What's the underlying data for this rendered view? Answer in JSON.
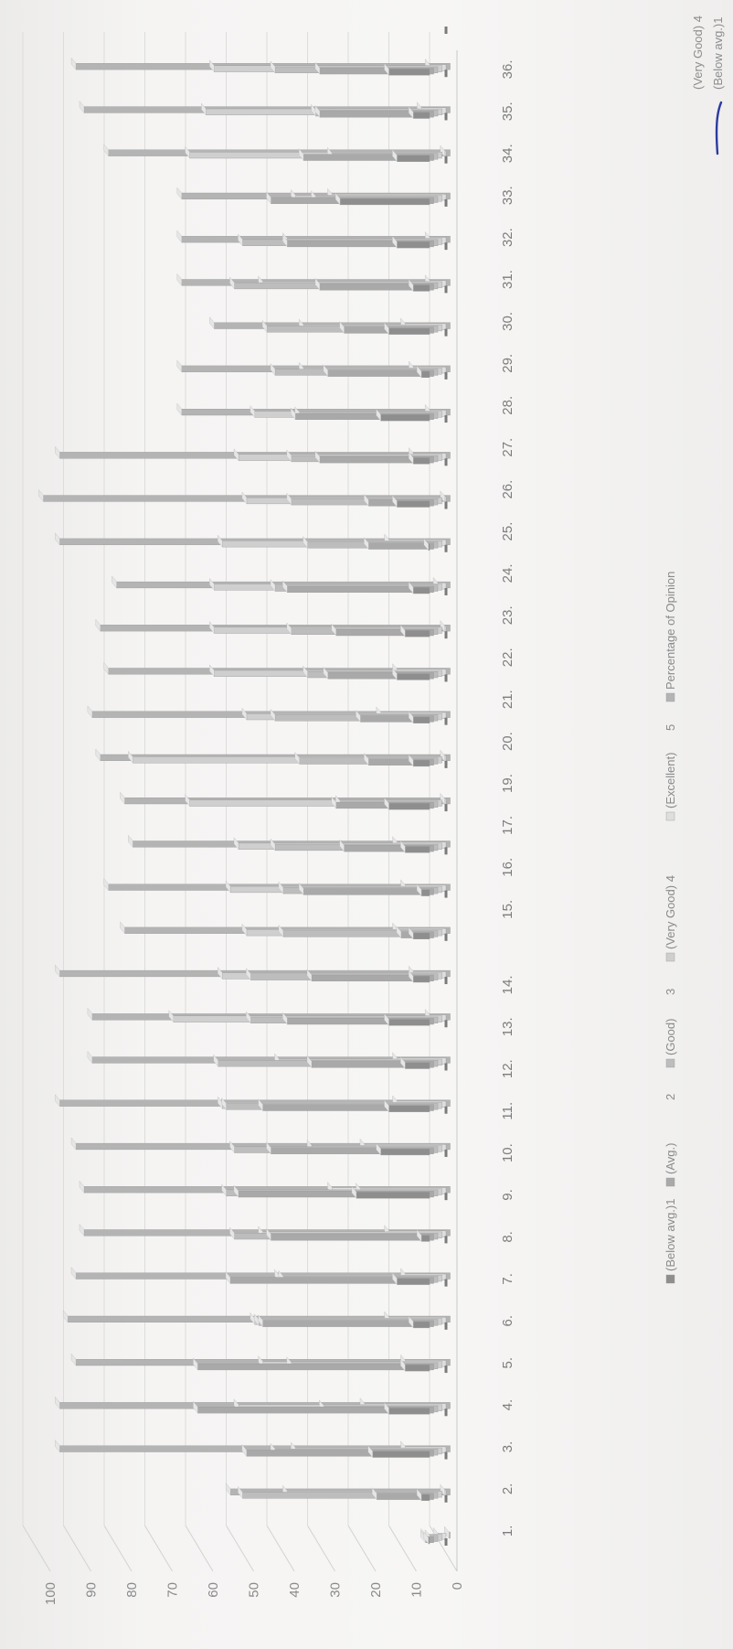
{
  "chart_data": {
    "type": "bar",
    "style": "3d-clustered",
    "orientation": "rotated-page",
    "ylim": [
      0,
      100
    ],
    "yticks": [
      "0",
      "10",
      "20",
      "30",
      "40",
      "50",
      "60",
      "70",
      "80",
      "90",
      "100"
    ],
    "categories": [
      "1.",
      "2.",
      "3.",
      "4.",
      "5.",
      "6.",
      "7.",
      "8.",
      "9.",
      "10.",
      "11.",
      "12.",
      "13.",
      "14.",
      "15.",
      "16.",
      "17.",
      "19.",
      "20.",
      "21.",
      "22.",
      "23.",
      "24.",
      "25.",
      "26.",
      "27.",
      "28.",
      "29.",
      "30.",
      "31.",
      "32.",
      "33.",
      "34.",
      "35.",
      "36."
    ],
    "category_label_gaps": [
      14
    ],
    "series": [
      {
        "name": "(Below avg.)1",
        "color": "#8e8e8e",
        "values": [
          0,
          2,
          14,
          10,
          6,
          4,
          8,
          2,
          18,
          12,
          10,
          6,
          10,
          4,
          4,
          2,
          6,
          10,
          4,
          4,
          8,
          6,
          4,
          0,
          8,
          4,
          12,
          2,
          10,
          4,
          8,
          22,
          8,
          4,
          10
        ]
      },
      {
        "name": "(Avg.)",
        "color": "#a9a9a9",
        "values": [
          2,
          14,
          46,
          58,
          58,
          42,
          50,
          40,
          48,
          40,
          42,
          30,
          36,
          30,
          8,
          32,
          22,
          24,
          16,
          18,
          26,
          24,
          36,
          16,
          16,
          28,
          34,
          26,
          22,
          28,
          36,
          40,
          32,
          28,
          28
        ]
      },
      {
        "name": "(Good)",
        "color": "#bdbdbd",
        "values": [
          2,
          48,
          40,
          28,
          36,
          44,
          38,
          50,
          52,
          50,
          52,
          54,
          46,
          46,
          38,
          38,
          40,
          24,
          34,
          40,
          32,
          36,
          40,
          32,
          36,
          36,
          34,
          40,
          42,
          50,
          48,
          30,
          26,
          30,
          40
        ]
      },
      {
        "name": "(Very Good) 4",
        "color": "#cfcfcf",
        "values": [
          4,
          38,
          36,
          50,
          44,
          46,
          40,
          44,
          20,
          32,
          54,
          40,
          66,
          54,
          48,
          52,
          50,
          62,
          76,
          48,
          56,
          56,
          56,
          54,
          48,
          50,
          46,
          34,
          34,
          44,
          38,
          36,
          62,
          58,
          56
        ]
      },
      {
        "name": "(Excellent) 5",
        "color": "#dedede",
        "values": [
          2,
          0,
          10,
          20,
          10,
          14,
          10,
          14,
          28,
          20,
          12,
          12,
          4,
          8,
          12,
          10,
          12,
          0,
          0,
          16,
          12,
          0,
          2,
          14,
          0,
          8,
          4,
          8,
          10,
          4,
          4,
          28,
          0,
          6,
          4
        ]
      },
      {
        "name": "Percentage of Opinion",
        "color": "#b4b4b4",
        "values": [
          0,
          54,
          96,
          96,
          92,
          94,
          92,
          90,
          90,
          92,
          96,
          88,
          88,
          96,
          80,
          84,
          78,
          80,
          86,
          88,
          84,
          86,
          82,
          96,
          100,
          96,
          66,
          66,
          58,
          66,
          66,
          66,
          84,
          90,
          92
        ]
      }
    ],
    "legend": {
      "placement": "bottom",
      "entries": [
        "(Below avg.)1",
        "(Avg.)",
        "2",
        "(Good)",
        "3",
        "(Very Good) 4",
        "(Excellent)",
        "5",
        "Percentage of Opinion"
      ]
    },
    "side_labels": [
      "(Very Good) 4",
      "(Below avg.)1"
    ]
  }
}
